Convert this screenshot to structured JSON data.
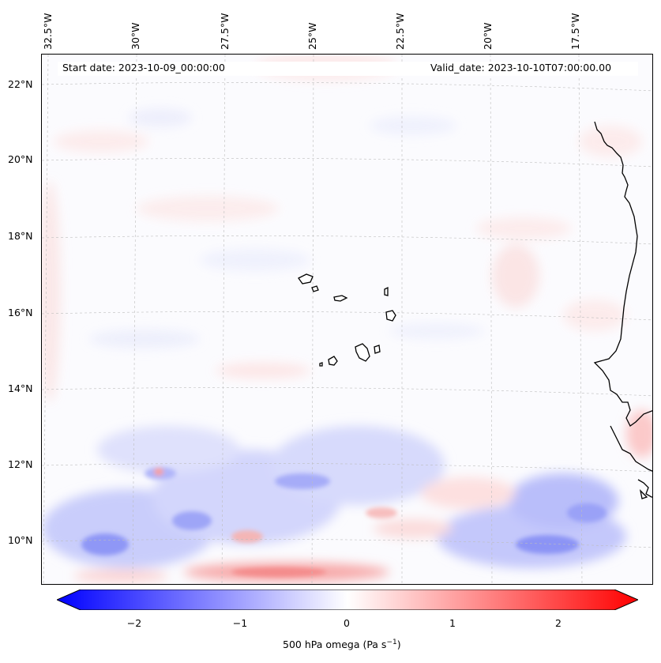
{
  "map": {
    "start_date": "Start date: 2023-10-09_00:00:00",
    "valid_date": "Valid_date: 2023-10-10T07:00:00.00",
    "lon_labels": [
      "32.5°W",
      "30°W",
      "27.5°W",
      "25°W",
      "22.5°W",
      "20°W",
      "17.5°W"
    ],
    "lat_labels": [
      "22°N",
      "20°N",
      "18°N",
      "16°N",
      "14°N",
      "12°N",
      "10°N"
    ],
    "colorbar": {
      "ticks": [
        "−2",
        "−1",
        "0",
        "1",
        "2"
      ],
      "tick_values": [
        -2,
        -1,
        0,
        1,
        2
      ],
      "range": [
        -2.5,
        2.5
      ],
      "label": "500 hPa omega (Pa s",
      "label_sup": "−1",
      "label_end": ")",
      "colormap": "bwr",
      "color_min": "#0000ff",
      "color_mid": "#ffffff",
      "color_max": "#ff0000"
    }
  }
}
